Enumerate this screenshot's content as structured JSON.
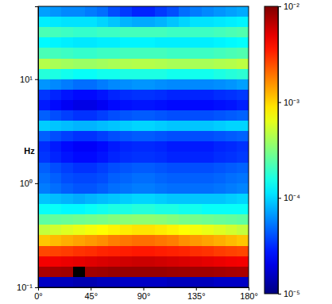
{
  "chart_data": {
    "type": "heatmap",
    "y_label": "Hz",
    "log": "y",
    "xlim": [
      0,
      180
    ],
    "xticks": [
      {
        "value": 0,
        "label": "0°"
      },
      {
        "value": 45,
        "label": "45°"
      },
      {
        "value": 90,
        "label": "90°"
      },
      {
        "value": 135,
        "label": "135°"
      },
      {
        "value": 180,
        "label": "180°"
      }
    ],
    "ylim": [
      0.1,
      50.1
    ],
    "yticks": [
      {
        "value": 0.1,
        "label": "10⁻¹"
      },
      {
        "value": 1,
        "label": "10⁰"
      },
      {
        "value": 10,
        "label": "10¹"
      }
    ],
    "x_bins": [
      0,
      10,
      20,
      30,
      40,
      50,
      60,
      70,
      80,
      90,
      100,
      110,
      120,
      130,
      140,
      150,
      160,
      170,
      180
    ],
    "y_bins": [
      0.1,
      0.126,
      0.158,
      0.2,
      0.251,
      0.316,
      0.398,
      0.501,
      0.631,
      0.794,
      1,
      1.26,
      1.58,
      2,
      2.51,
      3.16,
      3.98,
      5.01,
      6.31,
      7.94,
      10,
      12.6,
      15.8,
      20,
      25.1,
      31.6,
      39.8,
      50.1
    ],
    "values": [
      [
        1.6e-05,
        1.5e-05,
        1.5e-05,
        1.4e-05,
        1.4e-05,
        1.5e-05,
        1.5e-05,
        1.6e-05,
        1.6e-05,
        1.6e-05,
        1.6e-05,
        1.5e-05,
        1.5e-05,
        1.5e-05,
        1.5e-05,
        1.6e-05,
        1.6e-05,
        1.6e-05
      ],
      [
        0.0075,
        0.0078,
        0.008,
        null,
        0.008,
        0.0082,
        0.0085,
        0.0085,
        0.0085,
        0.0085,
        0.0085,
        0.0083,
        0.0082,
        0.008,
        0.008,
        0.0078,
        0.0076,
        0.0075
      ],
      [
        0.0045,
        0.0046,
        0.0048,
        0.005,
        0.0052,
        0.0054,
        0.0056,
        0.0058,
        0.006,
        0.006,
        0.0058,
        0.0056,
        0.0054,
        0.0052,
        0.005,
        0.0048,
        0.0046,
        0.0045
      ],
      [
        0.0026,
        0.0027,
        0.0028,
        0.003,
        0.0031,
        0.0033,
        0.0034,
        0.0035,
        0.0036,
        0.0036,
        0.0035,
        0.0034,
        0.0033,
        0.0031,
        0.003,
        0.0028,
        0.0027,
        0.0026
      ],
      [
        0.0011,
        0.0012,
        0.0013,
        0.0014,
        0.0015,
        0.0016,
        0.0018,
        0.0019,
        0.002,
        0.002,
        0.0019,
        0.0018,
        0.0016,
        0.0015,
        0.0014,
        0.0013,
        0.0012,
        0.0011
      ],
      [
        0.0005,
        0.00055,
        0.0006,
        0.00065,
        0.0007,
        0.00075,
        0.0008,
        0.00085,
        0.0009,
        0.0009,
        0.00085,
        0.0008,
        0.00075,
        0.0007,
        0.00065,
        0.0006,
        0.00055,
        0.0005
      ],
      [
        0.00025,
        0.00026,
        0.00027,
        0.00028,
        0.00029,
        0.0003,
        0.00032,
        0.00034,
        0.00035,
        0.00035,
        0.00034,
        0.00032,
        0.0003,
        0.00029,
        0.00028,
        0.00027,
        0.00026,
        0.00025
      ],
      [
        0.00014,
        0.00014,
        0.00013,
        0.00013,
        0.00014,
        0.00015,
        0.00016,
        0.00016,
        0.00017,
        0.00017,
        0.00016,
        0.00016,
        0.00015,
        0.00015,
        0.00014,
        0.00014,
        0.00014,
        0.00014
      ],
      [
        9e-05,
        8.5e-05,
        8e-05,
        7.5e-05,
        8e-05,
        8.5e-05,
        9e-05,
        9.5e-05,
        0.0001,
        0.0001,
        9.5e-05,
        9e-05,
        9e-05,
        9e-05,
        9e-05,
        9e-05,
        9.5e-05,
        0.0001
      ],
      [
        5.5e-05,
        5e-05,
        4.5e-05,
        4.2e-05,
        4.2e-05,
        4.5e-05,
        5e-05,
        5.2e-05,
        5.5e-05,
        5.5e-05,
        5.2e-05,
        5e-05,
        5e-05,
        5e-05,
        5e-05,
        5.2e-05,
        5.5e-05,
        5.8e-05
      ],
      [
        5e-05,
        4.5e-05,
        4e-05,
        3.8e-05,
        3.8e-05,
        4e-05,
        4.5e-05,
        4.7e-05,
        5e-05,
        5e-05,
        4.7e-05,
        4.5e-05,
        4.5e-05,
        4.5e-05,
        4.5e-05,
        4.7e-05,
        5e-05,
        5.2e-05
      ],
      [
        4.5e-05,
        4e-05,
        3.6e-05,
        3.3e-05,
        3.3e-05,
        3.6e-05,
        4e-05,
        4.2e-05,
        4.4e-05,
        4.4e-05,
        4.2e-05,
        4e-05,
        4e-05,
        4e-05,
        4e-05,
        4.2e-05,
        4.4e-05,
        4.6e-05
      ],
      [
        3.4e-05,
        3e-05,
        2.7e-05,
        2.5e-05,
        2.5e-05,
        2.7e-05,
        3e-05,
        3.2e-05,
        3.3e-05,
        3.3e-05,
        3.2e-05,
        3e-05,
        3e-05,
        3e-05,
        3e-05,
        3.2e-05,
        3.3e-05,
        3.5e-05
      ],
      [
        3.2e-05,
        2.8e-05,
        2.5e-05,
        2.3e-05,
        2.3e-05,
        2.5e-05,
        2.8e-05,
        3e-05,
        3.1e-05,
        3.1e-05,
        3e-05,
        2.8e-05,
        2.8e-05,
        2.8e-05,
        2.8e-05,
        3e-05,
        3.1e-05,
        3.3e-05
      ],
      [
        4.5e-05,
        4e-05,
        3.6e-05,
        3.3e-05,
        3.3e-05,
        3.6e-05,
        4e-05,
        4.2e-05,
        4.4e-05,
        4.4e-05,
        4.2e-05,
        4e-05,
        4e-05,
        4e-05,
        4e-05,
        4.2e-05,
        4.4e-05,
        4.6e-05
      ],
      [
        9.5e-05,
        9e-05,
        8.5e-05,
        8e-05,
        8e-05,
        8.5e-05,
        9e-05,
        9.5e-05,
        0.0001,
        0.0001,
        9.5e-05,
        9e-05,
        9e-05,
        9e-05,
        9e-05,
        9.5e-05,
        0.0001,
        0.0001
      ],
      [
        4.5e-05,
        4e-05,
        3.6e-05,
        3.3e-05,
        3.3e-05,
        3.6e-05,
        4e-05,
        4.2e-05,
        4.4e-05,
        4.4e-05,
        4.2e-05,
        4e-05,
        4e-05,
        4e-05,
        4e-05,
        4.2e-05,
        4.4e-05,
        4.6e-05
      ],
      [
        2.8e-05,
        2.5e-05,
        2.2e-05,
        2e-05,
        2e-05,
        2.2e-05,
        2.5e-05,
        2.6e-05,
        2.7e-05,
        2.7e-05,
        2.6e-05,
        2.5e-05,
        2.5e-05,
        2.5e-05,
        2.5e-05,
        2.6e-05,
        2.7e-05,
        2.9e-05
      ],
      [
        3.4e-05,
        3e-05,
        2.7e-05,
        2.5e-05,
        2.5e-05,
        2.7e-05,
        3e-05,
        3.2e-05,
        3.3e-05,
        3.3e-05,
        3.2e-05,
        3e-05,
        3e-05,
        3e-05,
        3e-05,
        3.2e-05,
        3.3e-05,
        3.5e-05
      ],
      [
        6.5e-05,
        6e-05,
        5.5e-05,
        5e-05,
        5e-05,
        5.5e-05,
        6e-05,
        6.2e-05,
        6.5e-05,
        6.5e-05,
        6.2e-05,
        6e-05,
        6e-05,
        6e-05,
        6e-05,
        6.2e-05,
        6.5e-05,
        7e-05
      ],
      [
        0.00017,
        0.00016,
        0.00015,
        0.00014,
        0.00014,
        0.00015,
        0.00015,
        0.00016,
        0.00016,
        0.00016,
        0.00016,
        0.00015,
        0.00015,
        0.00015,
        0.00015,
        0.00016,
        0.00017,
        0.00018
      ],
      [
        0.00045,
        0.00042,
        0.0004,
        0.00038,
        0.00038,
        0.0004,
        0.00042,
        0.00044,
        0.00045,
        0.00045,
        0.00044,
        0.00042,
        0.00042,
        0.00042,
        0.00042,
        0.00044,
        0.00045,
        0.00048
      ],
      [
        0.00022,
        0.00021,
        0.0002,
        0.00019,
        0.00019,
        0.0002,
        0.0002,
        0.00021,
        0.00021,
        0.00021,
        0.00021,
        0.0002,
        0.0002,
        0.0002,
        0.0002,
        0.00021,
        0.00022,
        0.00023
      ],
      [
        0.00013,
        0.000125,
        0.00012,
        0.000115,
        0.000115,
        0.00012,
        0.00012,
        0.000125,
        0.000125,
        0.000125,
        0.00012,
        0.00012,
        0.00012,
        0.00012,
        0.00012,
        0.000125,
        0.00013,
        0.000135
      ],
      [
        0.00022,
        0.00021,
        0.0002,
        0.00019,
        0.00019,
        0.0002,
        0.0002,
        0.00021,
        0.00021,
        0.00021,
        0.00021,
        0.0002,
        0.0002,
        0.0002,
        0.0002,
        0.00021,
        0.00022,
        0.00023
      ],
      [
        0.00012,
        0.000115,
        0.00011,
        0.00011,
        0.00011,
        0.0001,
        9e-05,
        8e-05,
        7.5e-05,
        7.5e-05,
        8e-05,
        9e-05,
        0.0001,
        0.00011,
        0.00011,
        0.000115,
        0.00012,
        0.000125
      ],
      [
        7e-05,
        6.5e-05,
        6e-05,
        6e-05,
        5.5e-05,
        5e-05,
        4e-05,
        3.5e-05,
        3e-05,
        3e-05,
        3.5e-05,
        4e-05,
        5e-05,
        5.5e-05,
        6e-05,
        6.5e-05,
        7e-05,
        7.5e-05
      ]
    ],
    "color_range": [
      1e-05,
      0.01
    ],
    "color_ticks": [
      {
        "value": 1e-05,
        "label": "10⁻⁵"
      },
      {
        "value": 0.0001,
        "label": "10⁻⁴"
      },
      {
        "value": 0.001,
        "label": "10⁻³"
      },
      {
        "value": 0.01,
        "label": "10⁻²"
      }
    ]
  }
}
